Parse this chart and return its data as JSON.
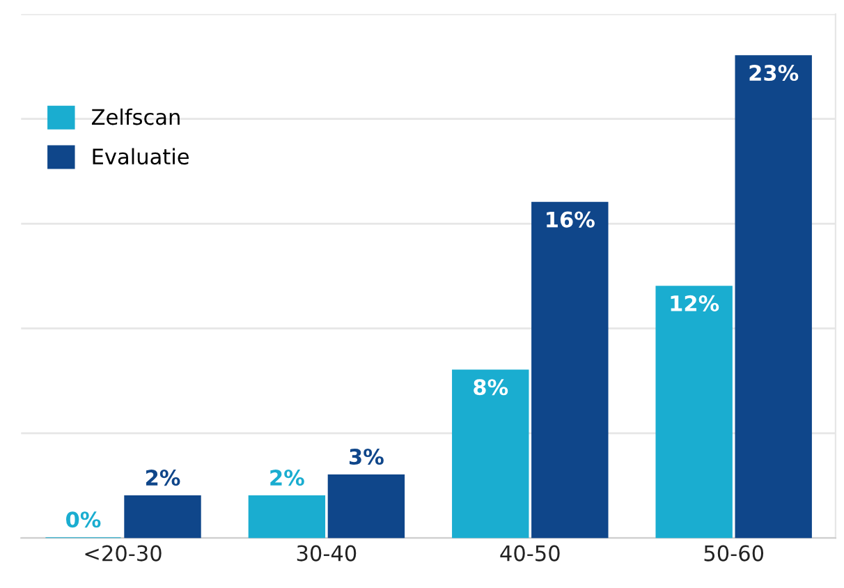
{
  "chart_data": {
    "type": "bar",
    "categories": [
      "<20-30",
      "30-40",
      "40-50",
      "50-60"
    ],
    "series": [
      {
        "name": "Zelfscan",
        "color": "#1aadd0",
        "values": [
          0,
          2,
          8,
          12
        ],
        "value_labels": [
          "0%",
          "2%",
          "8%",
          "12%"
        ]
      },
      {
        "name": "Evaluatie",
        "color": "#0f468a",
        "values": [
          2,
          3,
          16,
          23
        ],
        "value_labels": [
          "2%",
          "3%",
          "16%",
          "23%"
        ]
      }
    ],
    "ylim": [
      0,
      25
    ],
    "yticks": [
      {
        "value": 0,
        "label": null
      },
      {
        "value": 5,
        "label": null
      },
      {
        "value": 10,
        "label": null
      },
      {
        "value": 15,
        "label": null
      },
      {
        "value": 20,
        "label": null
      },
      {
        "value": 25,
        "label": null
      }
    ],
    "tick_labels": "x",
    "grid": "y",
    "legend": "top left"
  }
}
